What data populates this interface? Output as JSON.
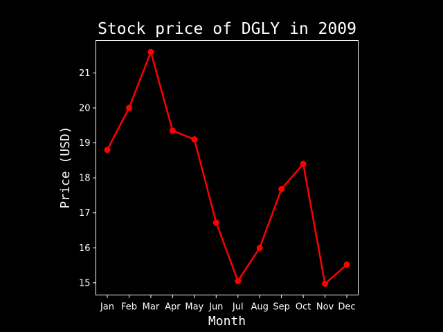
{
  "chart_data": {
    "type": "line",
    "title": "Stock price of DGLY in 2009",
    "xlabel": "Month",
    "ylabel": "Price (USD)",
    "categories": [
      "Jan",
      "Feb",
      "Mar",
      "Apr",
      "May",
      "Jun",
      "Jul",
      "Aug",
      "Sep",
      "Oct",
      "Nov",
      "Dec"
    ],
    "series": [
      {
        "values": [
          18.8,
          20.0,
          21.6,
          19.35,
          19.1,
          16.72,
          15.05,
          16.0,
          17.68,
          18.4,
          14.97,
          15.52
        ],
        "color": "#ff0000",
        "marker": "circle"
      }
    ],
    "yticks": [
      15,
      16,
      17,
      18,
      19,
      20,
      21
    ],
    "ylim": [
      14.65,
      21.93
    ],
    "grid": false,
    "background": "#000000",
    "foreground": "#ffffff"
  }
}
